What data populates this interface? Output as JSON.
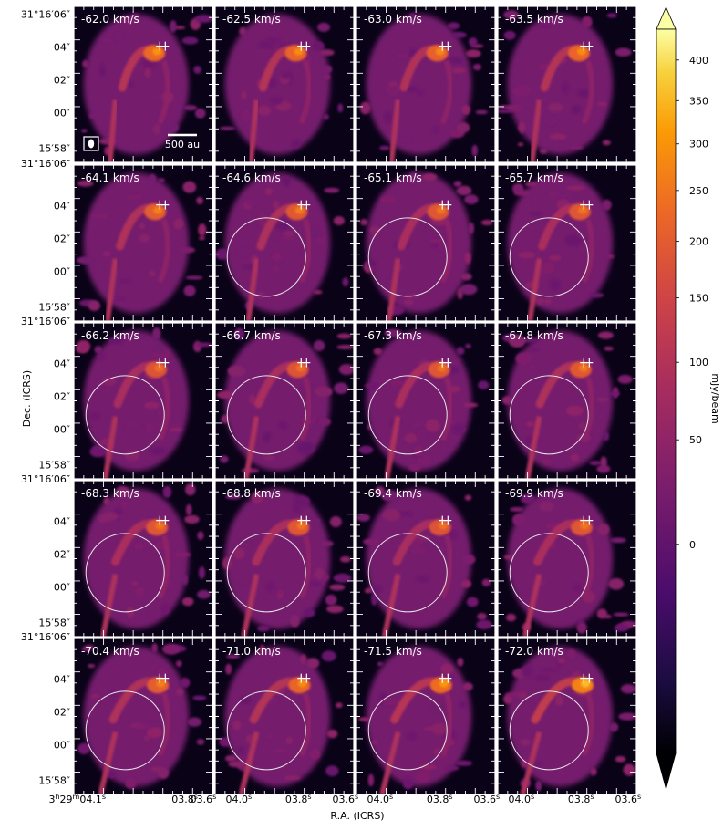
{
  "chart_data": {
    "type": "heatmap",
    "subtype": "channel-map grid",
    "panel_grid": {
      "rows": 5,
      "cols": 4
    },
    "panel_labels": [
      "-62.0 km/s",
      "-62.5 km/s",
      "-63.0 km/s",
      "-63.5 km/s",
      "-64.1 km/s",
      "-64.6 km/s",
      "-65.1 km/s",
      "-65.7 km/s",
      "-66.2 km/s",
      "-66.7 km/s",
      "-67.3 km/s",
      "-67.8 km/s",
      "-68.3 km/s",
      "-68.8 km/s",
      "-69.4 km/s",
      "-69.9 km/s",
      "-70.4 km/s",
      "-71.0 km/s",
      "-71.5 km/s",
      "-72.0 km/s"
    ],
    "velocities": [
      -62.0,
      -62.5,
      -63.0,
      -63.5,
      -64.1,
      -64.6,
      -65.1,
      -65.7,
      -66.2,
      -66.7,
      -67.3,
      -67.8,
      -68.3,
      -68.8,
      -69.4,
      -69.9,
      -70.4,
      -71.0,
      -71.5,
      -72.0
    ],
    "velocity_unit": "km/s",
    "circle_shown": [
      false,
      false,
      false,
      false,
      false,
      true,
      true,
      true,
      true,
      true,
      true,
      true,
      true,
      true,
      true,
      true,
      true,
      true,
      true,
      true
    ],
    "peak_intensity_estimate": [
      300,
      290,
      280,
      290,
      270,
      260,
      250,
      250,
      240,
      240,
      250,
      260,
      250,
      250,
      240,
      250,
      270,
      290,
      310,
      360
    ],
    "xlabel": "R.A. (ICRS)",
    "ylabel": "Dec. (ICRS)",
    "first_col_xticks": [
      "3h29m04.1s",
      "03.8s",
      "03.6s"
    ],
    "other_col_xticks": [
      "04.0s",
      "03.8s",
      "03.6s"
    ],
    "yticks_top": "31°16′06″",
    "yticks": [
      "04″",
      "02″",
      "00″",
      "15′58″"
    ],
    "scalebar_label": "500 au",
    "colorbar": {
      "label": "mJy/beam",
      "ticks": [
        0,
        50,
        100,
        150,
        200,
        250,
        300,
        350,
        400
      ],
      "range": [
        -40,
        440
      ],
      "scale": "power-stretch",
      "colormap": "inferno-like"
    }
  }
}
